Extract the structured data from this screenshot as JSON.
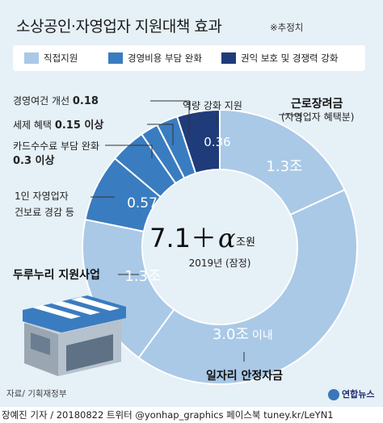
{
  "header": {
    "title": "소상공인·자영업자 지원대책 효과",
    "note": "※추정치"
  },
  "legend": [
    {
      "label": "직접지원",
      "color": "#a9c9e6"
    },
    {
      "label": "경영비용 부담 완화",
      "color": "#3a7cc0"
    },
    {
      "label": "권익 보호 및 경쟁력 강화",
      "color": "#1f3b7a"
    }
  ],
  "center": {
    "total": "7.1＋",
    "alpha": "α",
    "unit": "조원",
    "year_label": "2019년 (잠정)"
  },
  "chart_data": {
    "type": "pie",
    "donut": true,
    "total_label": "7.1＋α 조원",
    "period": "2019년 (잠정)",
    "slices": [
      {
        "name": "근로장려금 (자영업자 혜택분)",
        "value": 1.3,
        "value_label": "1.3조",
        "group": "직접지원"
      },
      {
        "name": "일자리 안정자금",
        "value": 3.0,
        "value_label": "3.0조 이내",
        "group": "직접지원"
      },
      {
        "name": "두루누리 지원사업",
        "value": 1.3,
        "value_label": "1.3조",
        "group": "직접지원"
      },
      {
        "name": "1인 자영업자 건보료 경감 등",
        "value": 0.57,
        "value_label": "0.57",
        "group": "경영비용 부담 완화"
      },
      {
        "name": "카드수수료 부담 완화",
        "value": 0.3,
        "value_label": "0.3 이상",
        "group": "경영비용 부담 완화"
      },
      {
        "name": "세제 혜택",
        "value": 0.15,
        "value_label": "0.15 이상",
        "group": "경영비용 부담 완화"
      },
      {
        "name": "경영여건 개선",
        "value": 0.18,
        "value_label": "0.18",
        "group": "경영비용 부담 완화"
      },
      {
        "name": "역량 강화 지원",
        "value": 0.36,
        "value_label": "0.36",
        "group": "권익 보호 및 경쟁력 강화"
      }
    ]
  },
  "labels": {
    "job": "일자리 안정자금",
    "earned": "근로장려금",
    "earned_sub": "(자영업자 혜택분)",
    "capacity": "역량 강화 지원",
    "mgmt": "경영여건 개선",
    "mgmt_val": "0.18",
    "tax": "세제 혜택",
    "tax_val": "0.15 이상",
    "card": "카드수수료 부담 완화",
    "card_val": "0.3 이상",
    "health1": "1인 자영업자",
    "health2": "건보료 경감 등",
    "durunuri": "두루누리 지원사업",
    "v_earned": "1.3조",
    "v_job_num": "3.0조",
    "v_job_suffix": "이내",
    "v_durunuri": "1.3조",
    "v_health": "0.57",
    "v_capacity": "0.36"
  },
  "footer": {
    "source": "자료/ 기획재정부",
    "credit": "장예진 기자 / 20180822 트위터 @yonhap_graphics  페이스북 tuney.kr/LeYN1",
    "logo": "연합뉴스"
  }
}
